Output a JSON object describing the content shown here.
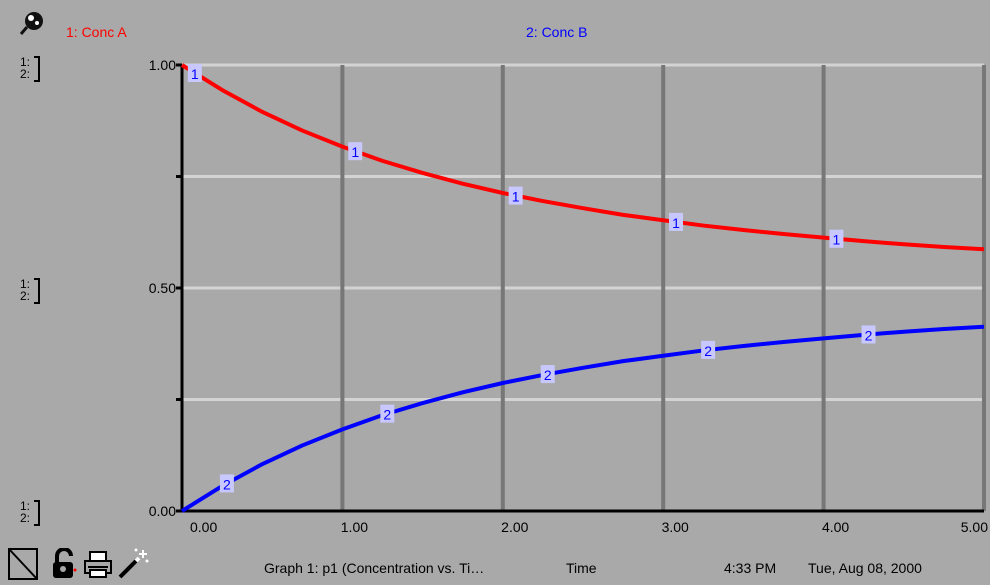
{
  "legend": {
    "series1": "1: Conc A",
    "series2": "2: Conc B",
    "series1_color": "#ff0000",
    "series2_color": "#0000ff"
  },
  "axis_tags": {
    "top": [
      "1:",
      "2:"
    ],
    "mid": [
      "1:",
      "2:"
    ],
    "bottom": [
      "1:",
      "2:"
    ]
  },
  "footer": {
    "graph_title": "Graph 1: p1 (Concentration vs. Ti…",
    "x_axis_name": "Time",
    "time": "4:33 PM",
    "date": "Tue, Aug 08, 2000"
  },
  "icons": [
    "pin-magnifier-icon",
    "diagonal-corner-icon",
    "padlock-icon",
    "printer-icon",
    "magic-wand-icon"
  ],
  "chart_data": {
    "type": "line",
    "x_ticks": [
      "0.00",
      "1.00",
      "2.00",
      "3.00",
      "4.00",
      "5.00"
    ],
    "y_ticks": [
      "0.00",
      "0.50",
      "1.00"
    ],
    "xlim": [
      0,
      5
    ],
    "ylim": [
      0,
      1
    ],
    "grid": true,
    "background": "#a9a9a9",
    "x": [
      0,
      0.25,
      0.5,
      0.75,
      1.0,
      1.25,
      1.5,
      1.75,
      2.0,
      2.25,
      2.5,
      2.75,
      3.0,
      3.25,
      3.5,
      3.75,
      4.0,
      4.25,
      4.5,
      4.75,
      5.0
    ],
    "series": [
      {
        "label": "1",
        "color": "#ff0000",
        "values": [
          1.0,
          0.944,
          0.895,
          0.853,
          0.817,
          0.785,
          0.758,
          0.734,
          0.713,
          0.695,
          0.679,
          0.664,
          0.652,
          0.64,
          0.63,
          0.621,
          0.613,
          0.605,
          0.598,
          0.592,
          0.587
        ],
        "marker_x": [
          0.08,
          1.08,
          2.08,
          3.08,
          4.08
        ]
      },
      {
        "label": "2",
        "color": "#0000ff",
        "values": [
          0.0,
          0.056,
          0.105,
          0.147,
          0.183,
          0.215,
          0.242,
          0.266,
          0.287,
          0.305,
          0.321,
          0.336,
          0.348,
          0.36,
          0.37,
          0.379,
          0.387,
          0.395,
          0.402,
          0.408,
          0.413
        ],
        "marker_x": [
          0.28,
          1.28,
          2.28,
          3.28,
          4.28
        ]
      }
    ]
  }
}
